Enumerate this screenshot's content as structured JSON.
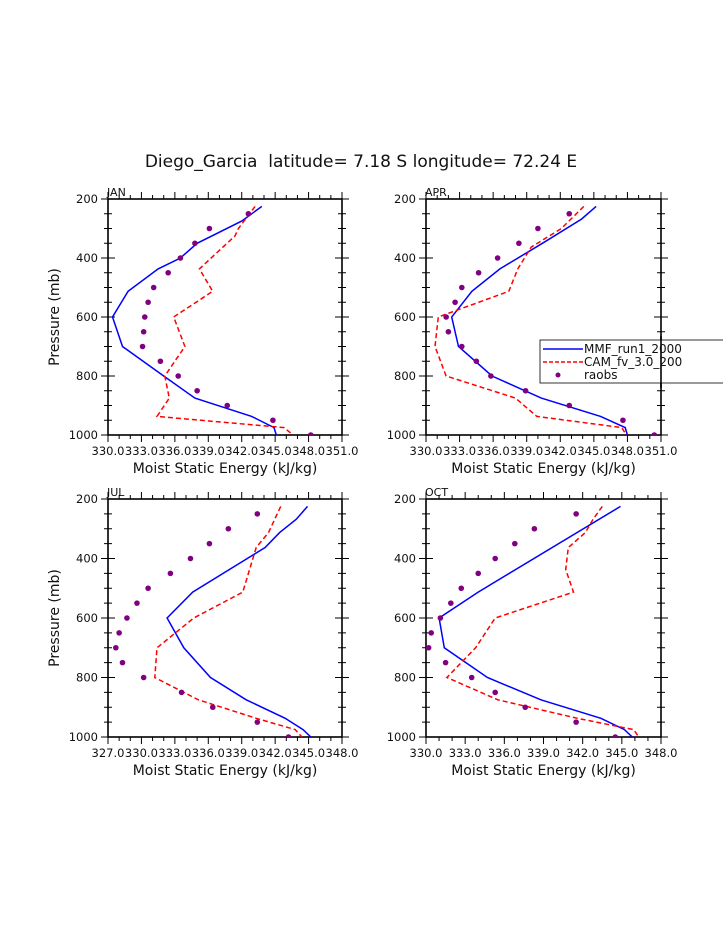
{
  "chart_data": {
    "type": "line",
    "title": "Diego_Garcia  latitude= 7.18 S longitude= 72.24 E",
    "legend": {
      "placement": "right-middle of APR panel",
      "entries": [
        {
          "name": "MMF_run1_2000",
          "style": "solid",
          "color": "#0000ff"
        },
        {
          "name": "CAM_fv_3.0_200",
          "style": "dashed",
          "color": "#ff0000"
        },
        {
          "name": "raobs",
          "style": "markers",
          "color": "#800080"
        }
      ]
    },
    "panels": [
      {
        "label": "JAN",
        "xlabel": "Moist Static Energy (kJ/kg)",
        "ylabel": "Pressure (mb)",
        "xlim": [
          330,
          351
        ],
        "ylim": [
          1000,
          200
        ],
        "xticks": [
          "330.0",
          "333.0",
          "336.0",
          "339.0",
          "342.0",
          "345.0",
          "348.0",
          "351.0"
        ],
        "yticks": [
          "200",
          "400",
          "600",
          "800",
          "1000"
        ],
        "series": [
          {
            "name": "MMF_run1_2000",
            "points": [
              [
                343.8,
                225
              ],
              [
                342.0,
                275
              ],
              [
                338.0,
                350
              ],
              [
                336.5,
                400
              ],
              [
                334.5,
                437
              ],
              [
                331.8,
                513
              ],
              [
                330.4,
                600
              ],
              [
                331.3,
                700
              ],
              [
                335.0,
                800
              ],
              [
                337.8,
                875
              ],
              [
                342.9,
                937
              ],
              [
                344.9,
                975
              ],
              [
                345.1,
                1000
              ]
            ]
          },
          {
            "name": "CAM_fv_3.0_200",
            "points": [
              [
                343.2,
                225
              ],
              [
                341.7,
                300
              ],
              [
                341.4,
                325
              ],
              [
                338.2,
                437
              ],
              [
                339.4,
                513
              ],
              [
                335.9,
                600
              ],
              [
                336.9,
                700
              ],
              [
                335.1,
                800
              ],
              [
                335.5,
                875
              ],
              [
                334.4,
                937
              ],
              [
                345.8,
                975
              ],
              [
                346.6,
                1000
              ]
            ]
          },
          {
            "name": "raobs",
            "points": [
              [
                342.6,
                250
              ],
              [
                339.1,
                300
              ],
              [
                337.8,
                350
              ],
              [
                336.5,
                400
              ],
              [
                335.4,
                450
              ],
              [
                334.1,
                500
              ],
              [
                333.6,
                550
              ],
              [
                333.3,
                600
              ],
              [
                333.2,
                650
              ],
              [
                333.1,
                700
              ],
              [
                334.7,
                750
              ],
              [
                336.3,
                800
              ],
              [
                338.0,
                850
              ],
              [
                340.7,
                900
              ],
              [
                344.8,
                950
              ],
              [
                348.2,
                1000
              ]
            ]
          }
        ]
      },
      {
        "label": "APR",
        "xlabel": "Moist Static Energy (kJ/kg)",
        "ylabel": "",
        "xlim": [
          330,
          351
        ],
        "ylim": [
          1000,
          200
        ],
        "xticks": [
          "330.0",
          "333.0",
          "336.0",
          "339.0",
          "342.0",
          "345.0",
          "348.0",
          "351.0"
        ],
        "yticks": [
          "200",
          "400",
          "600",
          "800",
          "1000"
        ],
        "series": [
          {
            "name": "MMF_run1_2000",
            "points": [
              [
                345.2,
                225
              ],
              [
                343.9,
                268
              ],
              [
                340.4,
                350
              ],
              [
                336.6,
                437
              ],
              [
                334.1,
                513
              ],
              [
                332.3,
                600
              ],
              [
                332.9,
                700
              ],
              [
                335.9,
                800
              ],
              [
                340.3,
                875
              ],
              [
                345.6,
                937
              ],
              [
                347.8,
                975
              ],
              [
                348.0,
                1000
              ]
            ]
          },
          {
            "name": "CAM_fv_3.0_200",
            "points": [
              [
                344.1,
                225
              ],
              [
                342.1,
                300
              ],
              [
                339.4,
                363
              ],
              [
                338.2,
                437
              ],
              [
                337.4,
                513
              ],
              [
                331.1,
                600
              ],
              [
                330.8,
                700
              ],
              [
                331.8,
                800
              ],
              [
                338.0,
                875
              ],
              [
                339.9,
                937
              ],
              [
                347.5,
                975
              ],
              [
                347.9,
                1000
              ]
            ]
          },
          {
            "name": "raobs",
            "points": [
              [
                342.8,
                250
              ],
              [
                340.0,
                300
              ],
              [
                338.3,
                350
              ],
              [
                336.4,
                400
              ],
              [
                334.7,
                450
              ],
              [
                333.2,
                500
              ],
              [
                332.6,
                550
              ],
              [
                331.8,
                600
              ],
              [
                332.0,
                650
              ],
              [
                333.2,
                700
              ],
              [
                334.5,
                750
              ],
              [
                335.8,
                800
              ],
              [
                338.9,
                850
              ],
              [
                342.8,
                900
              ],
              [
                347.6,
                950
              ],
              [
                350.4,
                1000
              ]
            ]
          }
        ]
      },
      {
        "label": "JUL",
        "xlabel": "Moist Static Energy (kJ/kg)",
        "ylabel": "Pressure (mb)",
        "xlim": [
          327,
          348
        ],
        "ylim": [
          1000,
          200
        ],
        "xticks": [
          "327.0",
          "330.0",
          "333.0",
          "336.0",
          "339.0",
          "342.0",
          "345.0",
          "348.0"
        ],
        "yticks": [
          "200",
          "400",
          "600",
          "800",
          "1000"
        ],
        "series": [
          {
            "name": "MMF_run1_2000",
            "points": [
              [
                344.9,
                225
              ],
              [
                343.9,
                268
              ],
              [
                342.4,
                313
              ],
              [
                341.1,
                363
              ],
              [
                334.6,
                513
              ],
              [
                332.3,
                600
              ],
              [
                333.8,
                700
              ],
              [
                336.2,
                800
              ],
              [
                339.4,
                875
              ],
              [
                342.9,
                937
              ],
              [
                344.5,
                975
              ],
              [
                345.2,
                1000
              ]
            ]
          },
          {
            "name": "CAM_fv_3.0_200",
            "points": [
              [
                342.5,
                225
              ],
              [
                341.4,
                313
              ],
              [
                340.3,
                363
              ],
              [
                339.1,
                513
              ],
              [
                334.7,
                600
              ],
              [
                331.4,
                700
              ],
              [
                331.2,
                800
              ],
              [
                335.1,
                875
              ],
              [
                340.3,
                937
              ],
              [
                343.8,
                975
              ],
              [
                344.4,
                1000
              ]
            ]
          },
          {
            "name": "raobs",
            "points": [
              [
                340.4,
                250
              ],
              [
                337.8,
                300
              ],
              [
                336.1,
                350
              ],
              [
                334.4,
                400
              ],
              [
                332.6,
                450
              ],
              [
                330.6,
                500
              ],
              [
                329.6,
                550
              ],
              [
                328.7,
                600
              ],
              [
                328.0,
                650
              ],
              [
                327.7,
                700
              ],
              [
                328.3,
                750
              ],
              [
                330.2,
                800
              ],
              [
                333.6,
                850
              ],
              [
                336.4,
                900
              ],
              [
                340.4,
                950
              ],
              [
                343.2,
                1000
              ]
            ]
          }
        ]
      },
      {
        "label": "OCT",
        "xlabel": "Moist Static Energy (kJ/kg)",
        "ylabel": "",
        "xlim": [
          330,
          348
        ],
        "ylim": [
          1000,
          200
        ],
        "xticks": [
          "330.0",
          "333.0",
          "336.0",
          "339.0",
          "342.0",
          "345.0",
          "348.0"
        ],
        "yticks": [
          "200",
          "400",
          "600",
          "800",
          "1000"
        ],
        "series": [
          {
            "name": "MMF_run1_2000",
            "points": [
              [
                344.9,
                225
              ],
              [
                334.0,
                513
              ],
              [
                331.0,
                600
              ],
              [
                331.4,
                700
              ],
              [
                334.7,
                800
              ],
              [
                338.8,
                875
              ],
              [
                343.4,
                937
              ],
              [
                345.2,
                975
              ],
              [
                345.8,
                1000
              ]
            ]
          },
          {
            "name": "CAM_fv_3.0_200",
            "points": [
              [
                343.5,
                225
              ],
              [
                342.8,
                268
              ],
              [
                342.2,
                313
              ],
              [
                340.9,
                363
              ],
              [
                340.7,
                437
              ],
              [
                341.3,
                513
              ],
              [
                335.3,
                600
              ],
              [
                333.8,
                700
              ],
              [
                331.6,
                800
              ],
              [
                335.5,
                875
              ],
              [
                341.6,
                937
              ],
              [
                345.9,
                975
              ],
              [
                346.3,
                1000
              ]
            ]
          },
          {
            "name": "raobs",
            "points": [
              [
                341.5,
                250
              ],
              [
                338.3,
                300
              ],
              [
                336.8,
                350
              ],
              [
                335.3,
                400
              ],
              [
                334.0,
                450
              ],
              [
                332.7,
                500
              ],
              [
                331.9,
                550
              ],
              [
                331.1,
                600
              ],
              [
                330.4,
                650
              ],
              [
                330.2,
                700
              ],
              [
                331.5,
                750
              ],
              [
                333.5,
                800
              ],
              [
                335.3,
                850
              ],
              [
                337.6,
                900
              ],
              [
                341.5,
                950
              ],
              [
                344.5,
                1000
              ]
            ]
          }
        ]
      }
    ]
  }
}
